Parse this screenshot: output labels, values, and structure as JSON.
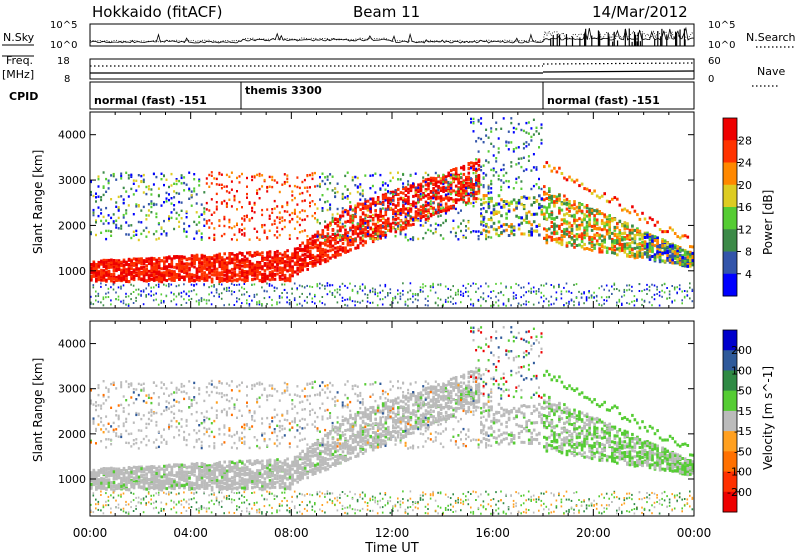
{
  "header": {
    "station": "Hokkaido (fitACF)",
    "beam": "Beam 11",
    "date": "14/Mar/2012"
  },
  "noise_panel": {
    "left_label": "N.Sky",
    "right_label": "N.Search",
    "left_ticks": [
      "10^5",
      "10^0"
    ],
    "right_ticks": [
      "10^5",
      "10^0"
    ]
  },
  "freq_panel": {
    "left_label_1": "Freq.",
    "left_label_2": "[MHz]",
    "right_label": "Nave",
    "left_ticks": [
      "18",
      "8"
    ],
    "right_ticks": [
      "60",
      "0"
    ]
  },
  "cpid_panel": {
    "label": "CPID",
    "segments": [
      {
        "label": "normal (fast) -151",
        "start_h": 0,
        "end_h": 6
      },
      {
        "label": "themis 3300",
        "start_h": 6,
        "end_h": 18
      },
      {
        "label": "normal (fast) -151",
        "start_h": 18,
        "end_h": 24
      }
    ]
  },
  "x_axis": {
    "label": "Time UT",
    "ticks": [
      "00:00",
      "04:00",
      "08:00",
      "12:00",
      "16:00",
      "20:00",
      "00:00"
    ]
  },
  "chart_data": [
    {
      "type": "heatmap",
      "ylabel": "Slant Range [km]",
      "y_ticks": [
        1000,
        2000,
        3000,
        4000
      ],
      "ylim": [
        180,
        4500
      ],
      "xlim_hours": [
        0,
        24
      ],
      "colorbar": {
        "label": "Power [dB]",
        "ticks": [
          4,
          8,
          12,
          16,
          20,
          24,
          28
        ],
        "colors": [
          "#0000ff",
          "#3355aa",
          "#3c8a48",
          "#55cc33",
          "#ddcc22",
          "#ff8800",
          "#ff3300",
          "#ee0000"
        ]
      }
    },
    {
      "type": "heatmap",
      "ylabel": "Slant Range [km]",
      "y_ticks": [
        1000,
        2000,
        3000,
        4000
      ],
      "ylim": [
        180,
        4500
      ],
      "xlim_hours": [
        0,
        24
      ],
      "colorbar": {
        "label": "Velocity [m s^-1]",
        "ticks": [
          200,
          100,
          50,
          15,
          -15,
          -50,
          -100,
          -200
        ],
        "colors": [
          "#0000cc",
          "#2f5a9a",
          "#2f8a44",
          "#55cc33",
          "#bbbbbb",
          "#ffa020",
          "#ff7000",
          "#ff3000",
          "#ee0000"
        ]
      }
    }
  ]
}
